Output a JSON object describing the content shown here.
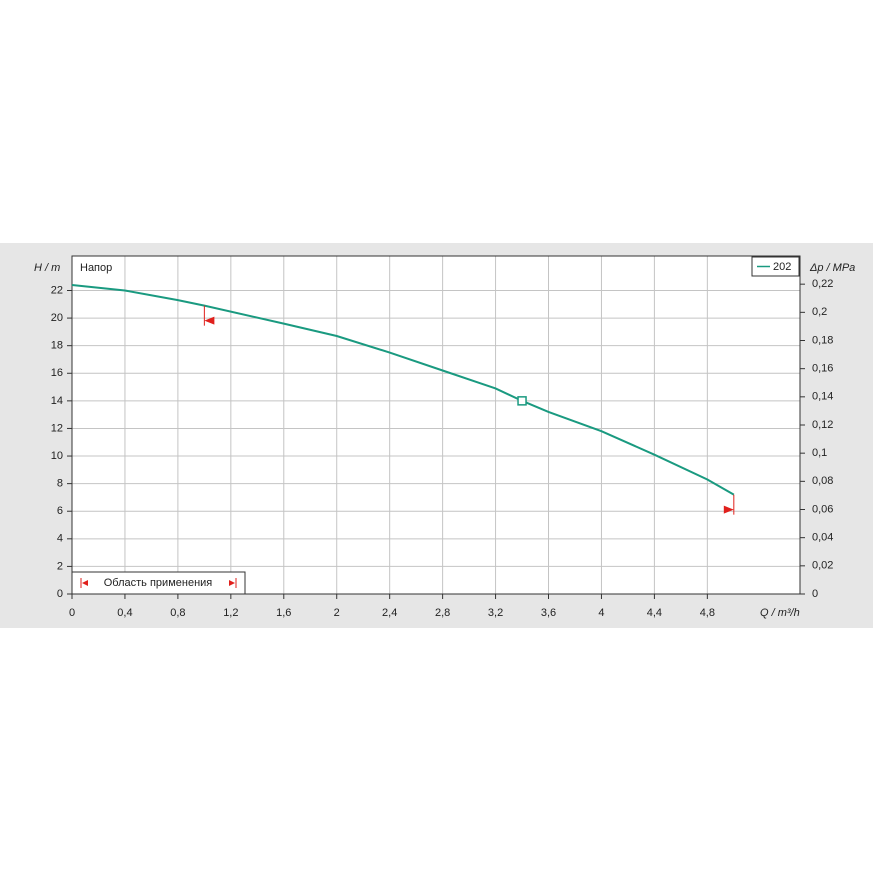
{
  "chart_data": {
    "type": "line",
    "y_label": "H / m",
    "y_title": "Напор",
    "y2_label": "Δp / MPa",
    "x_label": "Q / m³/h",
    "annotation": "Область применения",
    "x": [
      0,
      0.4,
      0.8,
      1.0,
      1.6,
      2.0,
      2.4,
      2.8,
      3.2,
      3.4,
      3.6,
      4.0,
      4.4,
      4.8,
      5.0
    ],
    "series": [
      {
        "name": "202",
        "color": "#1a9a80",
        "values": [
          22.4,
          22.0,
          21.3,
          20.9,
          19.6,
          18.7,
          17.5,
          16.2,
          14.9,
          14.0,
          13.2,
          11.8,
          10.1,
          8.3,
          7.2
        ]
      }
    ],
    "operating_point": {
      "x": 3.4,
      "y": 14.0
    },
    "application_range": [
      1.0,
      5.0
    ],
    "limit_color": "#e0201c",
    "xlim": [
      0,
      5.5
    ],
    "xticks": [
      0,
      {
        "value": 0.4,
        "label": "0,4"
      },
      {
        "value": 0.8,
        "label": "0,8"
      },
      {
        "value": 1.2,
        "label": "1,2"
      },
      {
        "value": 1.6,
        "label": "1,6"
      },
      2,
      {
        "value": 2.4,
        "label": "2,4"
      },
      {
        "value": 2.8,
        "label": "2,8"
      },
      {
        "value": 3.2,
        "label": "3,2"
      },
      {
        "value": 3.6,
        "label": "3,6"
      },
      4,
      {
        "value": 4.4,
        "label": "4,4"
      },
      {
        "value": 4.8,
        "label": "4,8"
      }
    ],
    "ylim": [
      0,
      24.5
    ],
    "yticks": [
      0,
      2,
      4,
      6,
      8,
      10,
      12,
      14,
      16,
      18,
      20,
      22
    ],
    "y2lim": [
      0,
      0.24
    ],
    "y2ticks": [
      0,
      {
        "value": 0.02,
        "label": "0,02"
      },
      {
        "value": 0.04,
        "label": "0,04"
      },
      {
        "value": 0.06,
        "label": "0,06"
      },
      {
        "value": 0.08,
        "label": "0,08"
      },
      {
        "value": 0.1,
        "label": "0,1"
      },
      {
        "value": 0.12,
        "label": "0,12"
      },
      {
        "value": 0.14,
        "label": "0,14"
      },
      {
        "value": 0.16,
        "label": "0,16"
      },
      {
        "value": 0.18,
        "label": "0,18"
      },
      {
        "value": 0.2,
        "label": "0,2"
      },
      {
        "value": 0.22,
        "label": "0,22"
      }
    ],
    "grid": true
  }
}
